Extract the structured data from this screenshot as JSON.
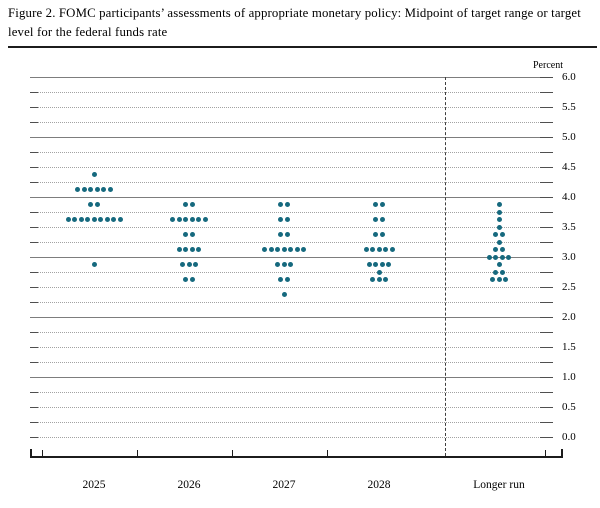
{
  "header": {
    "title": "Figure 2. FOMC participants’ assessments of appropriate monetary policy: Midpoint of target range or target level for the federal funds rate"
  },
  "chart_data": {
    "type": "scatter",
    "variant": "fomc-dot-plot",
    "title": "Figure 2. FOMC participants’ assessments of appropriate monetary policy: Midpoint of target range or target level for the federal funds rate",
    "ylabel": "Percent",
    "xlabel": "",
    "ylim": [
      0.0,
      6.0
    ],
    "gridline_step": 0.25,
    "grid": "solid horizontal lines at integer percents, dotted lines at quarter-point increments, dashed vertical separator before Longer run",
    "legend_position": "none",
    "y_tick_labels": [
      "6.0",
      "5.5",
      "5.0",
      "4.5",
      "4.0",
      "3.5",
      "3.0",
      "2.5",
      "2.0",
      "1.5",
      "1.0",
      "0.5",
      "0.0"
    ],
    "categories": [
      "2025",
      "2026",
      "2027",
      "2028",
      "Longer run"
    ],
    "separator_after_category": "2028",
    "dot_color": "#16697e",
    "participants_per_column": 19,
    "series": [
      {
        "category": "2025",
        "dots": [
          {
            "rate": 4.375,
            "count": 1
          },
          {
            "rate": 4.125,
            "count": 6
          },
          {
            "rate": 3.875,
            "count": 2
          },
          {
            "rate": 3.625,
            "count": 9
          },
          {
            "rate": 2.875,
            "count": 1
          }
        ]
      },
      {
        "category": "2026",
        "dots": [
          {
            "rate": 3.875,
            "count": 2
          },
          {
            "rate": 3.625,
            "count": 6
          },
          {
            "rate": 3.375,
            "count": 2
          },
          {
            "rate": 3.125,
            "count": 4
          },
          {
            "rate": 2.875,
            "count": 3
          },
          {
            "rate": 2.625,
            "count": 2
          }
        ]
      },
      {
        "category": "2027",
        "dots": [
          {
            "rate": 3.875,
            "count": 2
          },
          {
            "rate": 3.625,
            "count": 2
          },
          {
            "rate": 3.375,
            "count": 2
          },
          {
            "rate": 3.125,
            "count": 7
          },
          {
            "rate": 2.875,
            "count": 3
          },
          {
            "rate": 2.625,
            "count": 2
          },
          {
            "rate": 2.375,
            "count": 1
          }
        ]
      },
      {
        "category": "2028",
        "dots": [
          {
            "rate": 3.875,
            "count": 2
          },
          {
            "rate": 3.625,
            "count": 2
          },
          {
            "rate": 3.375,
            "count": 2
          },
          {
            "rate": 3.125,
            "count": 5
          },
          {
            "rate": 2.875,
            "count": 4
          },
          {
            "rate": 2.75,
            "count": 1
          },
          {
            "rate": 2.625,
            "count": 3
          }
        ]
      },
      {
        "category": "Longer run",
        "dots": [
          {
            "rate": 3.875,
            "count": 1
          },
          {
            "rate": 3.75,
            "count": 1
          },
          {
            "rate": 3.625,
            "count": 1
          },
          {
            "rate": 3.5,
            "count": 1
          },
          {
            "rate": 3.375,
            "count": 2
          },
          {
            "rate": 3.25,
            "count": 1
          },
          {
            "rate": 3.125,
            "count": 2
          },
          {
            "rate": 3.0,
            "count": 4
          },
          {
            "rate": 2.875,
            "count": 1
          },
          {
            "rate": 2.75,
            "count": 2
          },
          {
            "rate": 2.625,
            "count": 3
          }
        ]
      }
    ]
  }
}
